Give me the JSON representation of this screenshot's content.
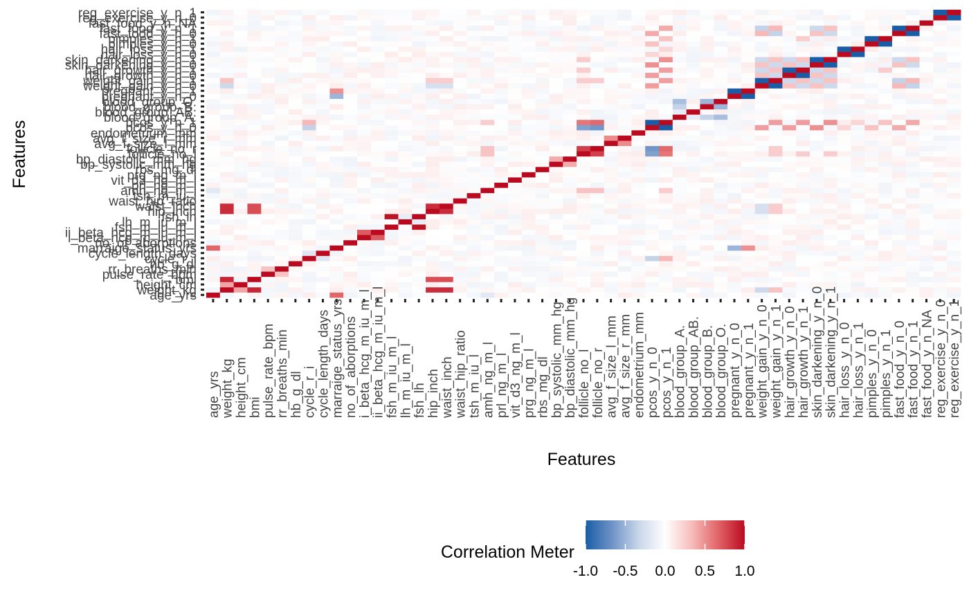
{
  "chart_data": {
    "type": "heatmap",
    "xlabel": "Features",
    "ylabel": "Features",
    "features": [
      "age_yrs",
      "weight_kg",
      "height_cm",
      "bmi",
      "pulse_rate_bpm",
      "rr_breaths_min",
      "hb_g_dl",
      "cycle_r_i",
      "cycle_length_days",
      "marraige_status_yrs",
      "no_of_aborptions",
      "i_beta_hcg_m_iu_m_l",
      "ii_beta_hcg_m_iu_m_l",
      "fsh_m_iu_m_l",
      "lh_m_iu_m_l",
      "fsh_lh",
      "hip_inch",
      "waist_inch",
      "waist_hip_ratio",
      "tsh_m_iu_l",
      "amh_ng_m_l",
      "prl_ng_m_l",
      "vit_d3_ng_m_l",
      "prg_ng_m_l",
      "rbs_mg_dl",
      "bp_systolic_mm_hg",
      "bp_diastolic_mm_hg",
      "follicle_no_l",
      "follicle_no_r",
      "avg_f_size_l_mm",
      "avg_f_size_r_mm",
      "endometrium_mm",
      "pcos_y_n_0",
      "pcos_y_n_1",
      "blood_group_A.",
      "blood_group_AB.",
      "blood_group_B.",
      "blood_group_O.",
      "pregnant_y_n_0",
      "pregnant_y_n_1",
      "weight_gain_y_n_0",
      "weight_gain_y_n_1",
      "hair_growth_y_n_0",
      "hair_growth_y_n_1",
      "skin_darkening_y_n_0",
      "skin_darkening_y_n_1",
      "hair_loss_y_n_0",
      "hair_loss_y_n_1",
      "pimples_y_n_0",
      "pimples_y_n_1",
      "fast_food_y_n_0",
      "fast_food_y_n_1",
      "fast_food_y_n_NA",
      "reg_exercise_y_n_0",
      "reg_exercise_y_n_1"
    ],
    "strong_correlations": [
      {
        "a": "weight_kg",
        "b": "bmi",
        "value": 0.9
      },
      {
        "a": "weight_kg",
        "b": "height_cm",
        "value": 0.42
      },
      {
        "a": "weight_kg",
        "b": "hip_inch",
        "value": 0.87
      },
      {
        "a": "weight_kg",
        "b": "waist_inch",
        "value": 0.87
      },
      {
        "a": "bmi",
        "b": "hip_inch",
        "value": 0.75
      },
      {
        "a": "bmi",
        "b": "waist_inch",
        "value": 0.75
      },
      {
        "a": "hip_inch",
        "b": "waist_inch",
        "value": 0.87
      },
      {
        "a": "pulse_rate_bpm",
        "b": "rr_breaths_min",
        "value": 0.3
      },
      {
        "a": "age_yrs",
        "b": "marraige_status_yrs",
        "value": 0.66
      },
      {
        "a": "i_beta_hcg_m_iu_m_l",
        "b": "ii_beta_hcg_m_iu_m_l",
        "value": 0.7
      },
      {
        "a": "fsh_m_iu_m_l",
        "b": "fsh_lh",
        "value": 0.97
      },
      {
        "a": "follicle_no_l",
        "b": "follicle_no_r",
        "value": 0.8
      },
      {
        "a": "avg_f_size_l_mm",
        "b": "avg_f_size_r_mm",
        "value": 0.52
      },
      {
        "a": "follicle_no_l",
        "b": "pcos_y_n_1",
        "value": 0.6
      },
      {
        "a": "follicle_no_r",
        "b": "pcos_y_n_1",
        "value": 0.65
      },
      {
        "a": "follicle_no_l",
        "b": "pcos_y_n_0",
        "value": -0.6
      },
      {
        "a": "follicle_no_r",
        "b": "pcos_y_n_0",
        "value": -0.65
      },
      {
        "a": "pcos_y_n_0",
        "b": "pcos_y_n_1",
        "value": -1
      },
      {
        "a": "blood_group_A.",
        "b": "blood_group_AB.",
        "value": -0.15
      },
      {
        "a": "blood_group_A.",
        "b": "blood_group_B.",
        "value": -0.35
      },
      {
        "a": "blood_group_A.",
        "b": "blood_group_O.",
        "value": -0.45
      },
      {
        "a": "blood_group_B.",
        "b": "blood_group_O.",
        "value": -0.5
      },
      {
        "a": "pregnant_y_n_0",
        "b": "pregnant_y_n_1",
        "value": -1
      },
      {
        "a": "marraige_status_yrs",
        "b": "pregnant_y_n_0",
        "value": -0.5
      },
      {
        "a": "marraige_status_yrs",
        "b": "pregnant_y_n_1",
        "value": 0.5
      },
      {
        "a": "weight_gain_y_n_0",
        "b": "weight_gain_y_n_1",
        "value": -1
      },
      {
        "a": "hair_growth_y_n_0",
        "b": "hair_growth_y_n_1",
        "value": -1
      },
      {
        "a": "skin_darkening_y_n_0",
        "b": "skin_darkening_y_n_1",
        "value": -1
      },
      {
        "a": "hair_loss_y_n_0",
        "b": "hair_loss_y_n_1",
        "value": -1
      },
      {
        "a": "pimples_y_n_0",
        "b": "pimples_y_n_1",
        "value": -1
      },
      {
        "a": "fast_food_y_n_0",
        "b": "fast_food_y_n_1",
        "value": -1
      },
      {
        "a": "reg_exercise_y_n_0",
        "b": "reg_exercise_y_n_1",
        "value": -1
      },
      {
        "a": "pcos_y_n_1",
        "b": "weight_gain_y_n_1",
        "value": 0.45
      },
      {
        "a": "pcos_y_n_1",
        "b": "hair_growth_y_n_1",
        "value": 0.45
      },
      {
        "a": "pcos_y_n_1",
        "b": "skin_darkening_y_n_1",
        "value": 0.5
      },
      {
        "a": "pcos_y_n_1",
        "b": "fast_food_y_n_1",
        "value": 0.4
      },
      {
        "a": "pcos_y_n_1",
        "b": "pimples_y_n_1",
        "value": 0.3
      },
      {
        "a": "pcos_y_n_1",
        "b": "hair_loss_y_n_1",
        "value": 0.2
      },
      {
        "a": "pcos_y_n_0",
        "b": "weight_gain_y_n_0",
        "value": 0.45
      },
      {
        "a": "pcos_y_n_0",
        "b": "hair_growth_y_n_0",
        "value": 0.45
      },
      {
        "a": "pcos_y_n_0",
        "b": "skin_darkening_y_n_0",
        "value": 0.5
      },
      {
        "a": "pcos_y_n_0",
        "b": "fast_food_y_n_0",
        "value": 0.4
      },
      {
        "a": "pcos_y_n_0",
        "b": "pimples_y_n_0",
        "value": 0.3
      },
      {
        "a": "pcos_y_n_0",
        "b": "hair_loss_y_n_0",
        "value": 0.2
      },
      {
        "a": "weight_kg",
        "b": "weight_gain_y_n_1",
        "value": 0.3
      },
      {
        "a": "weight_kg",
        "b": "weight_gain_y_n_0",
        "value": -0.3
      },
      {
        "a": "follicle_no_l",
        "b": "weight_gain_y_n_1",
        "value": 0.25
      },
      {
        "a": "follicle_no_r",
        "b": "weight_gain_y_n_1",
        "value": 0.25
      },
      {
        "a": "follicle_no_l",
        "b": "skin_darkening_y_n_1",
        "value": 0.25
      },
      {
        "a": "follicle_no_l",
        "b": "hair_growth_y_n_1",
        "value": 0.25
      },
      {
        "a": "weight_gain_y_n_1",
        "b": "hair_growth_y_n_1",
        "value": 0.3
      },
      {
        "a": "weight_gain_y_n_1",
        "b": "skin_darkening_y_n_1",
        "value": 0.3
      },
      {
        "a": "hair_growth_y_n_1",
        "b": "skin_darkening_y_n_1",
        "value": 0.3
      },
      {
        "a": "weight_gain_y_n_1",
        "b": "fast_food_y_n_1",
        "value": 0.35
      },
      {
        "a": "skin_darkening_y_n_1",
        "b": "fast_food_y_n_1",
        "value": 0.3
      },
      {
        "a": "hair_growth_y_n_1",
        "b": "pimples_y_n_1",
        "value": 0.25
      },
      {
        "a": "weight_gain_y_n_0",
        "b": "hair_growth_y_n_0",
        "value": 0.3
      },
      {
        "a": "weight_gain_y_n_0",
        "b": "skin_darkening_y_n_0",
        "value": 0.3
      },
      {
        "a": "hair_growth_y_n_0",
        "b": "skin_darkening_y_n_0",
        "value": 0.3
      },
      {
        "a": "weight_gain_y_n_0",
        "b": "fast_food_y_n_0",
        "value": 0.35
      },
      {
        "a": "skin_darkening_y_n_0",
        "b": "fast_food_y_n_0",
        "value": 0.3
      },
      {
        "a": "weight_gain_y_n_0",
        "b": "hair_growth_y_n_1",
        "value": -0.3
      },
      {
        "a": "weight_gain_y_n_1",
        "b": "hair_growth_y_n_0",
        "value": -0.3
      },
      {
        "a": "weight_gain_y_n_0",
        "b": "skin_darkening_y_n_1",
        "value": -0.3
      },
      {
        "a": "weight_gain_y_n_1",
        "b": "skin_darkening_y_n_0",
        "value": -0.3
      },
      {
        "a": "weight_gain_y_n_0",
        "b": "fast_food_y_n_1",
        "value": -0.35
      },
      {
        "a": "weight_gain_y_n_1",
        "b": "fast_food_y_n_0",
        "value": -0.35
      },
      {
        "a": "hair_growth_y_n_0",
        "b": "skin_darkening_y_n_1",
        "value": -0.3
      },
      {
        "a": "hair_growth_y_n_1",
        "b": "skin_darkening_y_n_0",
        "value": -0.3
      },
      {
        "a": "skin_darkening_y_n_0",
        "b": "fast_food_y_n_1",
        "value": -0.3
      },
      {
        "a": "skin_darkening_y_n_1",
        "b": "fast_food_y_n_0",
        "value": -0.3
      },
      {
        "a": "cycle_r_i",
        "b": "pcos_y_n_1",
        "value": 0.35
      },
      {
        "a": "cycle_r_i",
        "b": "pcos_y_n_0",
        "value": -0.35
      },
      {
        "a": "amh_ng_m_l",
        "b": "pcos_y_n_1",
        "value": 0.25
      },
      {
        "a": "amh_ng_m_l",
        "b": "follicle_no_l",
        "value": 0.3
      },
      {
        "a": "amh_ng_m_l",
        "b": "follicle_no_r",
        "value": 0.3
      },
      {
        "a": "age_yrs",
        "b": "amh_ng_m_l",
        "value": -0.18
      },
      {
        "a": "bp_systolic_mm_hg",
        "b": "bp_diastolic_mm_hg",
        "value": 0.4
      },
      {
        "a": "waist_inch",
        "b": "weight_gain_y_n_1",
        "value": 0.25
      },
      {
        "a": "hip_inch",
        "b": "weight_gain_y_n_1",
        "value": 0.25
      },
      {
        "a": "waist_inch",
        "b": "weight_gain_y_n_0",
        "value": -0.25
      },
      {
        "a": "hip_inch",
        "b": "weight_gain_y_n_0",
        "value": -0.25
      },
      {
        "a": "cycle_length_days",
        "b": "cycle_r_i",
        "value": -0.2
      },
      {
        "a": "lh_m_iu_m_l",
        "b": "fsh_lh",
        "value": -0.15
      }
    ],
    "colorbar": {
      "title": "Correlation Meter",
      "ticks": [
        "-1.0",
        "-0.5",
        "0.0",
        "0.5",
        "1.0"
      ],
      "range": [
        -1,
        1
      ],
      "colors": [
        "#1a5da6",
        "#6e93c6",
        "#c9d6ea",
        "#ffffff",
        "#f7bcbc",
        "#e06467",
        "#bb0a1f"
      ]
    }
  }
}
